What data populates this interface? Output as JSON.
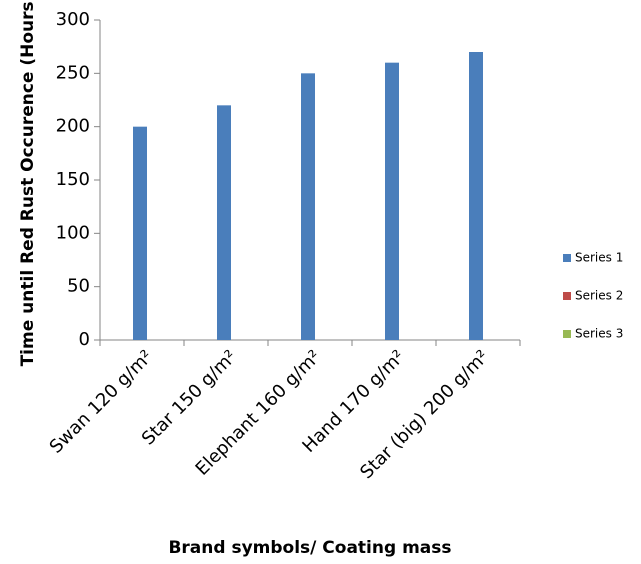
{
  "chart_data": {
    "type": "bar",
    "categories": [
      "Swan 120 g/m²",
      "Star 150 g/m²",
      "Elephant 160 g/m²",
      "Hand 170 g/m²",
      "Star (big) 200 g/m²"
    ],
    "series": [
      {
        "name": "Series 1",
        "color": "#4a7ebb",
        "values": [
          200,
          220,
          250,
          260,
          270
        ]
      },
      {
        "name": "Series 2",
        "color": "#be4b48",
        "values": [
          null,
          null,
          null,
          null,
          null
        ]
      },
      {
        "name": "Series 3",
        "color": "#98b954",
        "values": [
          null,
          null,
          null,
          null,
          null
        ]
      }
    ],
    "ylim": [
      0,
      300
    ],
    "yticks": [
      0,
      50,
      100,
      150,
      200,
      250,
      300
    ],
    "x_label": "Brand symbols/ Coating mass",
    "y_label": "Time until Red Rust Occurence (Hours)",
    "legend": "right"
  }
}
